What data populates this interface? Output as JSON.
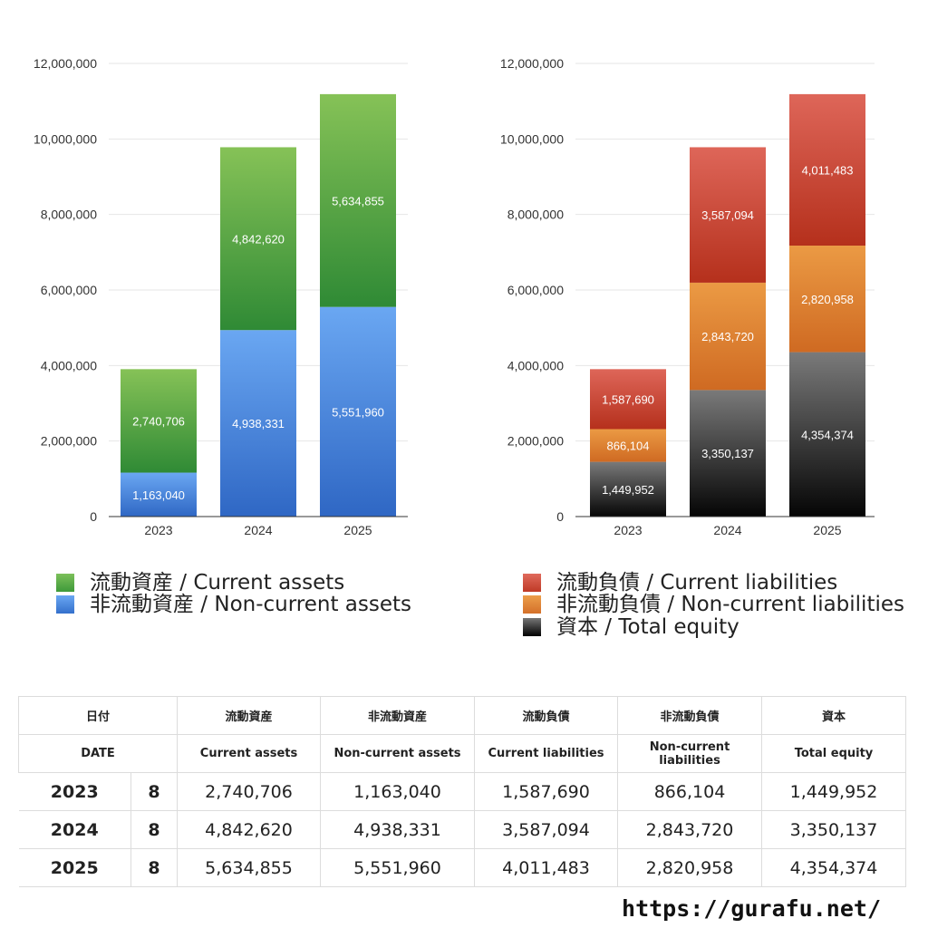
{
  "chart_data": [
    {
      "type": "bar",
      "stacked": true,
      "categories": [
        "2023",
        "2024",
        "2025"
      ],
      "yticks": [
        "0",
        "2,000,000",
        "4,000,000",
        "6,000,000",
        "8,000,000",
        "10,000,000",
        "12,000,000"
      ],
      "ylim": [
        0,
        12000000
      ],
      "grid": true,
      "series": [
        {
          "name": "非流動資産 / Non-current assets",
          "values": [
            1163040,
            4938331,
            5551960
          ],
          "labels": [
            "1,163,040",
            "4,938,331",
            "5,551,960"
          ],
          "color_top": "#6aa7f2",
          "color_bottom": "#2f67c4"
        },
        {
          "name": "流動資産 / Current assets",
          "values": [
            2740706,
            4842620,
            5634855
          ],
          "labels": [
            "2,740,706",
            "4,842,620",
            "5,634,855"
          ],
          "color_top": "#86c257",
          "color_bottom": "#2f8a35"
        }
      ]
    },
    {
      "type": "bar",
      "stacked": true,
      "categories": [
        "2023",
        "2024",
        "2025"
      ],
      "yticks": [
        "0",
        "2,000,000",
        "4,000,000",
        "6,000,000",
        "8,000,000",
        "10,000,000",
        "12,000,000"
      ],
      "ylim": [
        0,
        12000000
      ],
      "grid": true,
      "series": [
        {
          "name": "資本 / Total equity",
          "values": [
            1449952,
            3350137,
            4354374
          ],
          "labels": [
            "1,449,952",
            "3,350,137",
            "4,354,374"
          ],
          "color_top": "#7a7a7a",
          "color_bottom": "#050505"
        },
        {
          "name": "非流動負債 / Non-current liabilities",
          "values": [
            866104,
            2843720,
            2820958
          ],
          "labels": [
            "866,104",
            "2,843,720",
            "2,820,958"
          ],
          "color_top": "#eb9a44",
          "color_bottom": "#cf6a22"
        },
        {
          "name": "流動負債 / Current liabilities",
          "values": [
            1587690,
            3587094,
            4011483
          ],
          "labels": [
            "1,587,690",
            "3,587,094",
            "4,011,483"
          ],
          "color_top": "#de6659",
          "color_bottom": "#b5301c"
        }
      ]
    }
  ],
  "legend_left": [
    {
      "label": "流動資産 / Current assets",
      "color": "#4aa23e"
    },
    {
      "label": "非流動資産 / Non-current assets",
      "color": "#4a87dc"
    }
  ],
  "legend_right": [
    {
      "label": "流動負債 / Current liabilities",
      "color": "#d1463a"
    },
    {
      "label": "非流動負債 / Non-current liabilities",
      "color": "#e6862f"
    },
    {
      "label": "資本 / Total equity",
      "color": "#333333"
    }
  ],
  "table": {
    "header_jp": [
      "日付",
      "流動資産",
      "非流動資産",
      "流動負債",
      "非流動負債",
      "資本"
    ],
    "header_en": [
      "DATE",
      "Current assets",
      "Non-current assets",
      "Current liabilities",
      "Non-current liabilities",
      "Total equity"
    ],
    "rows": [
      {
        "year": "2023",
        "month": "8",
        "values": [
          "2,740,706",
          "1,163,040",
          "1,587,690",
          "866,104",
          "1,449,952"
        ]
      },
      {
        "year": "2024",
        "month": "8",
        "values": [
          "4,842,620",
          "4,938,331",
          "3,587,094",
          "2,843,720",
          "3,350,137"
        ]
      },
      {
        "year": "2025",
        "month": "8",
        "values": [
          "5,634,855",
          "5,551,960",
          "4,011,483",
          "2,820,958",
          "4,354,374"
        ]
      }
    ]
  },
  "footer": {
    "url": "https://gurafu.net/"
  }
}
